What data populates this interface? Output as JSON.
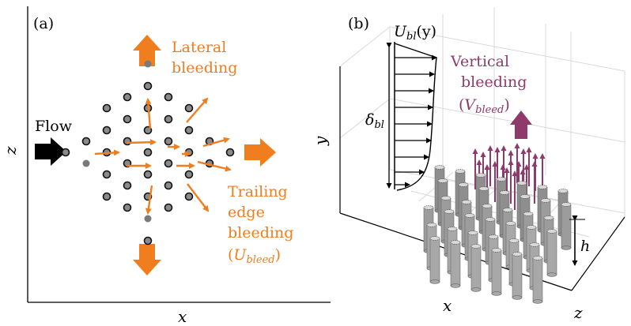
{
  "panel_a": {
    "label": "(a)",
    "flow_label": "Flow",
    "lateral_label_line1": "Lateral",
    "lateral_label_line2": "bleeding",
    "trailing_label_line1": "Trailing",
    "trailing_label_line2": "edge",
    "trailing_label_line3": "bleeding",
    "trailing_label_line4_open": "(",
    "trailing_label_line4_U": "U",
    "trailing_label_line4_sub": "bleed",
    "trailing_label_line4_close": ")",
    "axis_x": "x",
    "axis_z": "z"
  },
  "panel_b": {
    "label": "(b)",
    "profile_U": "U",
    "profile_sub": "bl",
    "profile_arg": "(y)",
    "delta_symbol": "δ",
    "delta_sub": "bl",
    "vertical_line1": "Vertical",
    "vertical_line2": "bleeding",
    "vertical_open": "(",
    "vertical_V": "V",
    "vertical_sub": "bleed",
    "vertical_close": ")",
    "axis_y": "y",
    "axis_x": "x",
    "axis_z": "z",
    "height_label": "h"
  },
  "colors": {
    "orange": "#f07d1e",
    "plum": "#8e3a6a",
    "cylinder_gray": "#9a9a9a"
  }
}
